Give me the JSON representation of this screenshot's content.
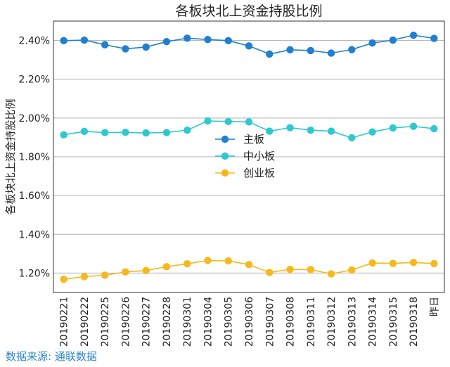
{
  "chart_data": {
    "type": "line",
    "title": "各板块北上资金持股比例",
    "xlabel": "",
    "ylabel": "各板块北上资金持股比例",
    "categories": [
      "20190221",
      "20190222",
      "20190225",
      "20190226",
      "20190227",
      "20190228",
      "20190301",
      "20190304",
      "20190305",
      "20190306",
      "20190307",
      "20190308",
      "20190311",
      "20190312",
      "20190313",
      "20190314",
      "20190315",
      "20190318",
      "昨日"
    ],
    "series": [
      {
        "name": "主板",
        "color": "#1f7fd0",
        "values": [
          2.399,
          2.402,
          2.378,
          2.357,
          2.366,
          2.394,
          2.412,
          2.405,
          2.399,
          2.372,
          2.33,
          2.352,
          2.348,
          2.335,
          2.353,
          2.387,
          2.402,
          2.427,
          2.411
        ]
      },
      {
        "name": "中小板",
        "color": "#2ec9cf",
        "values": [
          1.913,
          1.931,
          1.925,
          1.926,
          1.923,
          1.925,
          1.937,
          1.985,
          1.982,
          1.98,
          1.932,
          1.95,
          1.937,
          1.932,
          1.898,
          1.928,
          1.949,
          1.957,
          1.945
        ]
      },
      {
        "name": "创业板",
        "color": "#f7b81d",
        "values": [
          1.168,
          1.182,
          1.189,
          1.206,
          1.213,
          1.233,
          1.248,
          1.265,
          1.263,
          1.244,
          1.203,
          1.219,
          1.218,
          1.196,
          1.216,
          1.252,
          1.25,
          1.255,
          1.249
        ]
      }
    ],
    "ylim": [
      1.1,
      2.5
    ],
    "yticks": [
      1.2,
      1.4,
      1.6,
      1.8,
      2.0,
      2.2,
      2.4
    ],
    "ytick_labels": [
      "1.20%",
      "1.40%",
      "1.60%",
      "1.80%",
      "2.00%",
      "2.20%",
      "2.40%"
    ],
    "grid": "horizontal",
    "legend": "center"
  },
  "source_text": "数据来源: 通联数据"
}
